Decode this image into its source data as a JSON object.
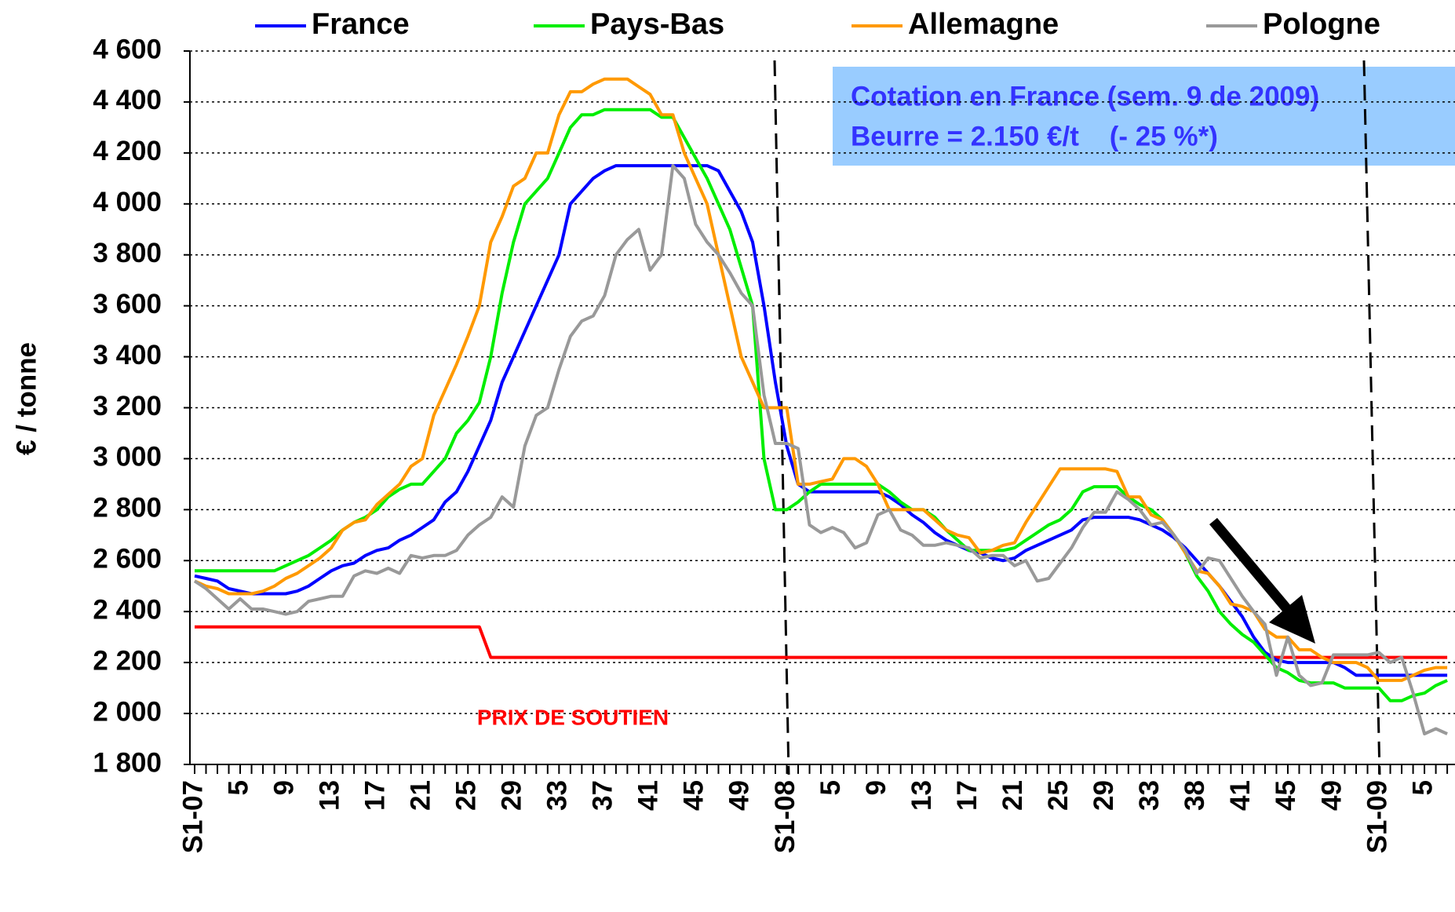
{
  "chart_data": {
    "type": "line",
    "y_label": "€ / tonne",
    "ylim": [
      1800,
      4600
    ],
    "yticks": [
      {
        "value": 1800,
        "label": "1 800"
      },
      {
        "value": 2000,
        "label": "2 000"
      },
      {
        "value": 2200,
        "label": "2 200"
      },
      {
        "value": 2400,
        "label": "2 400"
      },
      {
        "value": 2600,
        "label": "2 600"
      },
      {
        "value": 2800,
        "label": "2 800"
      },
      {
        "value": 3000,
        "label": "3 000"
      },
      {
        "value": 3200,
        "label": "3 200"
      },
      {
        "value": 3400,
        "label": "3 400"
      },
      {
        "value": 3600,
        "label": "3 600"
      },
      {
        "value": 3800,
        "label": "3 800"
      },
      {
        "value": 4000,
        "label": "4 000"
      },
      {
        "value": 4200,
        "label": "4 200"
      },
      {
        "value": 4400,
        "label": "4 400"
      },
      {
        "value": 4600,
        "label": "4 600"
      }
    ],
    "grid": true,
    "legend": "top",
    "categories": [
      "S1-07",
      null,
      null,
      null,
      "5",
      null,
      null,
      null,
      "9",
      null,
      null,
      null,
      "13",
      null,
      null,
      null,
      "17",
      null,
      null,
      null,
      "21",
      null,
      null,
      null,
      "25",
      null,
      null,
      null,
      "29",
      null,
      null,
      null,
      "33",
      null,
      null,
      null,
      "37",
      null,
      null,
      null,
      "41",
      null,
      null,
      null,
      "45",
      null,
      null,
      null,
      "49",
      null,
      null,
      null,
      "S1-08",
      null,
      null,
      null,
      "5",
      null,
      null,
      null,
      "9",
      null,
      null,
      null,
      "13",
      null,
      null,
      null,
      "17",
      null,
      null,
      null,
      "21",
      null,
      null,
      null,
      "25",
      null,
      null,
      null,
      "29",
      null,
      null,
      null,
      "33",
      null,
      null,
      null,
      "38",
      null,
      null,
      null,
      "41",
      null,
      null,
      null,
      "45",
      null,
      null,
      null,
      "49",
      null,
      null,
      null,
      "S1-09",
      null,
      null,
      null,
      "5",
      null,
      null
    ],
    "series": [
      {
        "name": "France",
        "color": "#0000ff",
        "values": [
          2540,
          2530,
          2520,
          2490,
          2480,
          2470,
          2470,
          2470,
          2470,
          2480,
          2500,
          2530,
          2560,
          2580,
          2590,
          2620,
          2640,
          2650,
          2680,
          2700,
          2730,
          2760,
          2830,
          2870,
          2950,
          3050,
          3150,
          3300,
          3400,
          3500,
          3600,
          3700,
          3800,
          4000,
          4050,
          4100,
          4130,
          4150,
          4150,
          4150,
          4150,
          4150,
          4150,
          4150,
          4150,
          4150,
          4130,
          4050,
          3970,
          3850,
          3600,
          3300,
          3050,
          2900,
          2870,
          2870,
          2870,
          2870,
          2870,
          2870,
          2870,
          2850,
          2820,
          2780,
          2750,
          2710,
          2680,
          2660,
          2640,
          2630,
          2610,
          2600,
          2610,
          2640,
          2660,
          2680,
          2700,
          2720,
          2760,
          2770,
          2770,
          2770,
          2770,
          2760,
          2740,
          2720,
          2690,
          2650,
          2600,
          2550,
          2500,
          2440,
          2380,
          2300,
          2240,
          2210,
          2200,
          2200,
          2200,
          2200,
          2200,
          2180,
          2150,
          2150,
          2150,
          2150,
          2150,
          2150,
          2150,
          2150,
          2150
        ]
      },
      {
        "name": "Pays-Bas",
        "color": "#00ee00",
        "values": [
          2560,
          2560,
          2560,
          2560,
          2560,
          2560,
          2560,
          2560,
          2580,
          2600,
          2620,
          2650,
          2680,
          2720,
          2750,
          2770,
          2800,
          2850,
          2880,
          2900,
          2900,
          2950,
          3000,
          3100,
          3150,
          3220,
          3400,
          3650,
          3850,
          4000,
          4050,
          4100,
          4200,
          4300,
          4350,
          4350,
          4370,
          4370,
          4370,
          4370,
          4370,
          4340,
          4340,
          4260,
          4180,
          4100,
          4000,
          3900,
          3750,
          3600,
          3000,
          2800,
          2800,
          2830,
          2870,
          2900,
          2900,
          2900,
          2900,
          2900,
          2900,
          2870,
          2830,
          2800,
          2800,
          2770,
          2720,
          2680,
          2640,
          2640,
          2640,
          2640,
          2650,
          2680,
          2710,
          2740,
          2760,
          2800,
          2870,
          2890,
          2890,
          2890,
          2850,
          2820,
          2800,
          2760,
          2700,
          2630,
          2540,
          2480,
          2400,
          2350,
          2310,
          2280,
          2230,
          2180,
          2160,
          2130,
          2120,
          2120,
          2120,
          2100,
          2100,
          2100,
          2100,
          2050,
          2050,
          2070,
          2080,
          2110,
          2130
        ]
      },
      {
        "name": "Allemagne",
        "color": "#ff9900",
        "values": [
          2520,
          2500,
          2490,
          2470,
          2470,
          2470,
          2480,
          2500,
          2530,
          2550,
          2580,
          2610,
          2650,
          2720,
          2750,
          2760,
          2820,
          2860,
          2900,
          2970,
          3000,
          3170,
          3270,
          3370,
          3480,
          3600,
          3850,
          3950,
          4070,
          4100,
          4200,
          4200,
          4350,
          4440,
          4440,
          4470,
          4490,
          4490,
          4490,
          4460,
          4430,
          4350,
          4350,
          4200,
          4100,
          4000,
          3800,
          3600,
          3400,
          3300,
          3200,
          3200,
          3200,
          2900,
          2900,
          2910,
          2920,
          3000,
          3000,
          2970,
          2900,
          2800,
          2800,
          2800,
          2800,
          2760,
          2720,
          2700,
          2690,
          2630,
          2640,
          2660,
          2670,
          2750,
          2820,
          2890,
          2960,
          2960,
          2960,
          2960,
          2960,
          2950,
          2850,
          2850,
          2780,
          2760,
          2700,
          2630,
          2560,
          2550,
          2500,
          2430,
          2420,
          2400,
          2330,
          2300,
          2300,
          2250,
          2250,
          2220,
          2200,
          2200,
          2200,
          2180,
          2130,
          2130,
          2130,
          2150,
          2170,
          2180,
          2180
        ]
      },
      {
        "name": "Pologne",
        "color": "#999999",
        "values": [
          2520,
          2490,
          2450,
          2410,
          2450,
          2410,
          2410,
          2400,
          2390,
          2400,
          2440,
          2450,
          2460,
          2460,
          2540,
          2560,
          2550,
          2570,
          2550,
          2620,
          2610,
          2620,
          2620,
          2640,
          2700,
          2740,
          2770,
          2850,
          2810,
          3050,
          3170,
          3200,
          3350,
          3480,
          3540,
          3560,
          3640,
          3800,
          3860,
          3900,
          3740,
          3800,
          4150,
          4100,
          3920,
          3850,
          3800,
          3730,
          3650,
          3600,
          3250,
          3060,
          3060,
          3040,
          2740,
          2710,
          2730,
          2710,
          2650,
          2670,
          2780,
          2800,
          2720,
          2700,
          2660,
          2660,
          2670,
          2660,
          2650,
          2610,
          2620,
          2620,
          2580,
          2600,
          2520,
          2530,
          2590,
          2650,
          2730,
          2790,
          2790,
          2870,
          2840,
          2800,
          2740,
          2750,
          2700,
          2640,
          2550,
          2610,
          2600,
          2530,
          2460,
          2400,
          2350,
          2150,
          2300,
          2150,
          2110,
          2120,
          2230,
          2230,
          2230,
          2230,
          2240,
          2200,
          2220,
          2080,
          1920,
          1940,
          1920
        ]
      }
    ],
    "reference_line": {
      "label": "PRIX DE SOUTIEN",
      "color": "#ff0000",
      "values": [
        2340,
        2340,
        2340,
        2340,
        2340,
        2340,
        2340,
        2340,
        2340,
        2340,
        2340,
        2340,
        2340,
        2340,
        2340,
        2340,
        2340,
        2340,
        2340,
        2340,
        2340,
        2340,
        2340,
        2340,
        2340,
        2340,
        2220,
        2220,
        2220,
        2220,
        2220,
        2220,
        2220,
        2220,
        2220,
        2220,
        2220,
        2220,
        2220,
        2220,
        2220,
        2220,
        2220,
        2220,
        2220,
        2220,
        2220,
        2220,
        2220,
        2220,
        2220,
        2220,
        2220,
        2220,
        2220,
        2220,
        2220,
        2220,
        2220,
        2220,
        2220,
        2220,
        2220,
        2220,
        2220,
        2220,
        2220,
        2220,
        2220,
        2220,
        2220,
        2220,
        2220,
        2220,
        2220,
        2220,
        2220,
        2220,
        2220,
        2220,
        2220,
        2220,
        2220,
        2220,
        2220,
        2220,
        2220,
        2220,
        2220,
        2220,
        2220,
        2220,
        2220,
        2220,
        2220,
        2220,
        2220,
        2220,
        2220,
        2220,
        2220,
        2220,
        2220,
        2220,
        2220,
        2220,
        2220,
        2220,
        2220,
        2220,
        2220
      ]
    },
    "annotation": [
      "Cotation en France (sem. 9 de 2009)",
      "Beurre = 2.150 €/t    (- 25 %*)"
    ]
  }
}
